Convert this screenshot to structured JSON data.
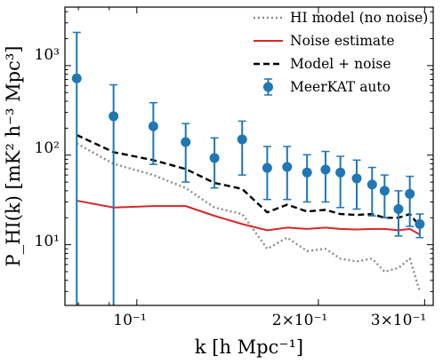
{
  "chart_data": {
    "type": "line",
    "xlabel": "k [h Mpc⁻¹]",
    "ylabel": "P_HI(k) [mK² h⁻³ Mpc³]",
    "xscale": "log",
    "yscale": "log",
    "xlim": [
      0.076,
      0.31
    ],
    "ylim": [
      2.1,
      4500
    ],
    "grid": false,
    "legend_position": "top-right",
    "x_tick_labels": [
      "10⁻¹",
      "2×10⁻¹",
      "3×10⁻¹"
    ],
    "y_tick_labels": [
      "10¹",
      "10²",
      "10³"
    ],
    "x": [
      0.0795,
      0.0915,
      0.1065,
      0.1205,
      0.1345,
      0.1495,
      0.1645,
      0.1775,
      0.1915,
      0.2055,
      0.2175,
      0.2315,
      0.2455,
      0.2575,
      0.2715,
      0.2835,
      0.2945
    ],
    "series": [
      {
        "name": "HI model (no noise)",
        "style": "dotted",
        "color": "#8c8c8c",
        "values": [
          135,
          80,
          60,
          43,
          26,
          22,
          9,
          12,
          8.5,
          9,
          7,
          6.5,
          7,
          5,
          5.5,
          7,
          3
        ]
      },
      {
        "name": "Noise estimate",
        "style": "solid",
        "color": "#d62728",
        "values": [
          31,
          26,
          27,
          27,
          21,
          17,
          14.5,
          15.5,
          15,
          15.5,
          15,
          14.8,
          15,
          15,
          14.5,
          15,
          13
        ]
      },
      {
        "name": "Model + noise",
        "style": "dashed",
        "color": "#000000",
        "values": [
          168,
          108,
          88,
          70,
          49,
          42,
          23,
          28,
          23.5,
          24.5,
          22,
          21.5,
          22,
          20,
          20,
          22,
          16
        ]
      },
      {
        "name": "MeerKAT auto",
        "style": "errorbar",
        "color": "#1f77b4",
        "values": [
          720,
          272,
          210,
          140,
          93,
          150,
          72,
          74,
          64,
          69,
          64,
          55,
          47,
          40,
          25,
          37,
          17
        ],
        "err_low": [
          719,
          271.7,
          131,
          90,
          50,
          90,
          40,
          42,
          34,
          39,
          38,
          30,
          26,
          20,
          12.5,
          21,
          5
        ],
        "err_high": [
          1630,
          338,
          175,
          85,
          63,
          90,
          53,
          51,
          37,
          41,
          33,
          33,
          26,
          20,
          15,
          21,
          5
        ]
      }
    ]
  }
}
